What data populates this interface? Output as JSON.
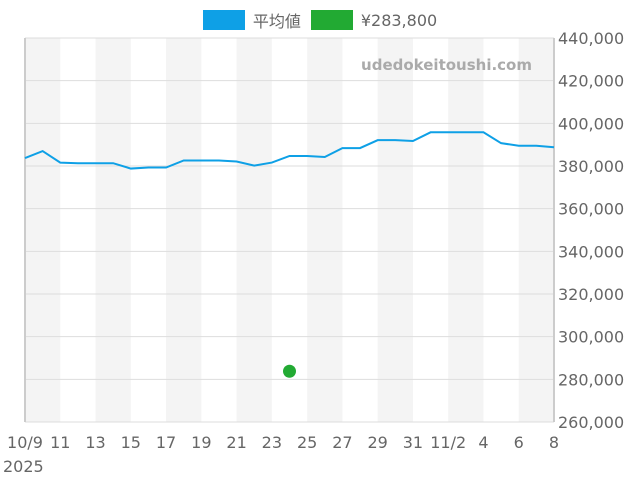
{
  "chart_data": {
    "type": "line",
    "watermark": "udedokeitoushi.com",
    "x_labels": [
      "10/9",
      "11",
      "13",
      "15",
      "17",
      "19",
      "21",
      "23",
      "25",
      "27",
      "29",
      "31",
      "11/2",
      "4",
      "6",
      "8"
    ],
    "x_year_label": "2025",
    "dates": [
      "10/9",
      "10/10",
      "10/11",
      "10/12",
      "10/13",
      "10/14",
      "10/15",
      "10/16",
      "10/17",
      "10/18",
      "10/19",
      "10/20",
      "10/21",
      "10/22",
      "10/23",
      "10/24",
      "10/25",
      "10/26",
      "10/27",
      "10/28",
      "10/29",
      "10/30",
      "10/31",
      "11/1",
      "11/2",
      "11/3",
      "11/4",
      "11/5",
      "11/6",
      "11/7",
      "11/8"
    ],
    "ylim": [
      260000,
      440000
    ],
    "y_ticks": [
      "260,000",
      "280,000",
      "300,000",
      "320,000",
      "340,000",
      "360,000",
      "380,000",
      "400,000",
      "420,000",
      "440,000"
    ],
    "grid": true,
    "legend_position": "top",
    "series": [
      {
        "name": "平均値",
        "color": "#0ea0e6",
        "values": [
          383700,
          387000,
          381600,
          381300,
          381300,
          381300,
          378800,
          379300,
          379300,
          382600,
          382600,
          382600,
          382100,
          380200,
          381600,
          384700,
          384700,
          384200,
          388400,
          388400,
          392100,
          392100,
          391700,
          395800,
          395800,
          395800,
          395800,
          390700,
          389500,
          389500,
          388800
        ]
      },
      {
        "name": "¥283,800",
        "color": "#22aa33",
        "points": [
          {
            "date": "10/24",
            "value": 283800
          }
        ]
      }
    ]
  }
}
